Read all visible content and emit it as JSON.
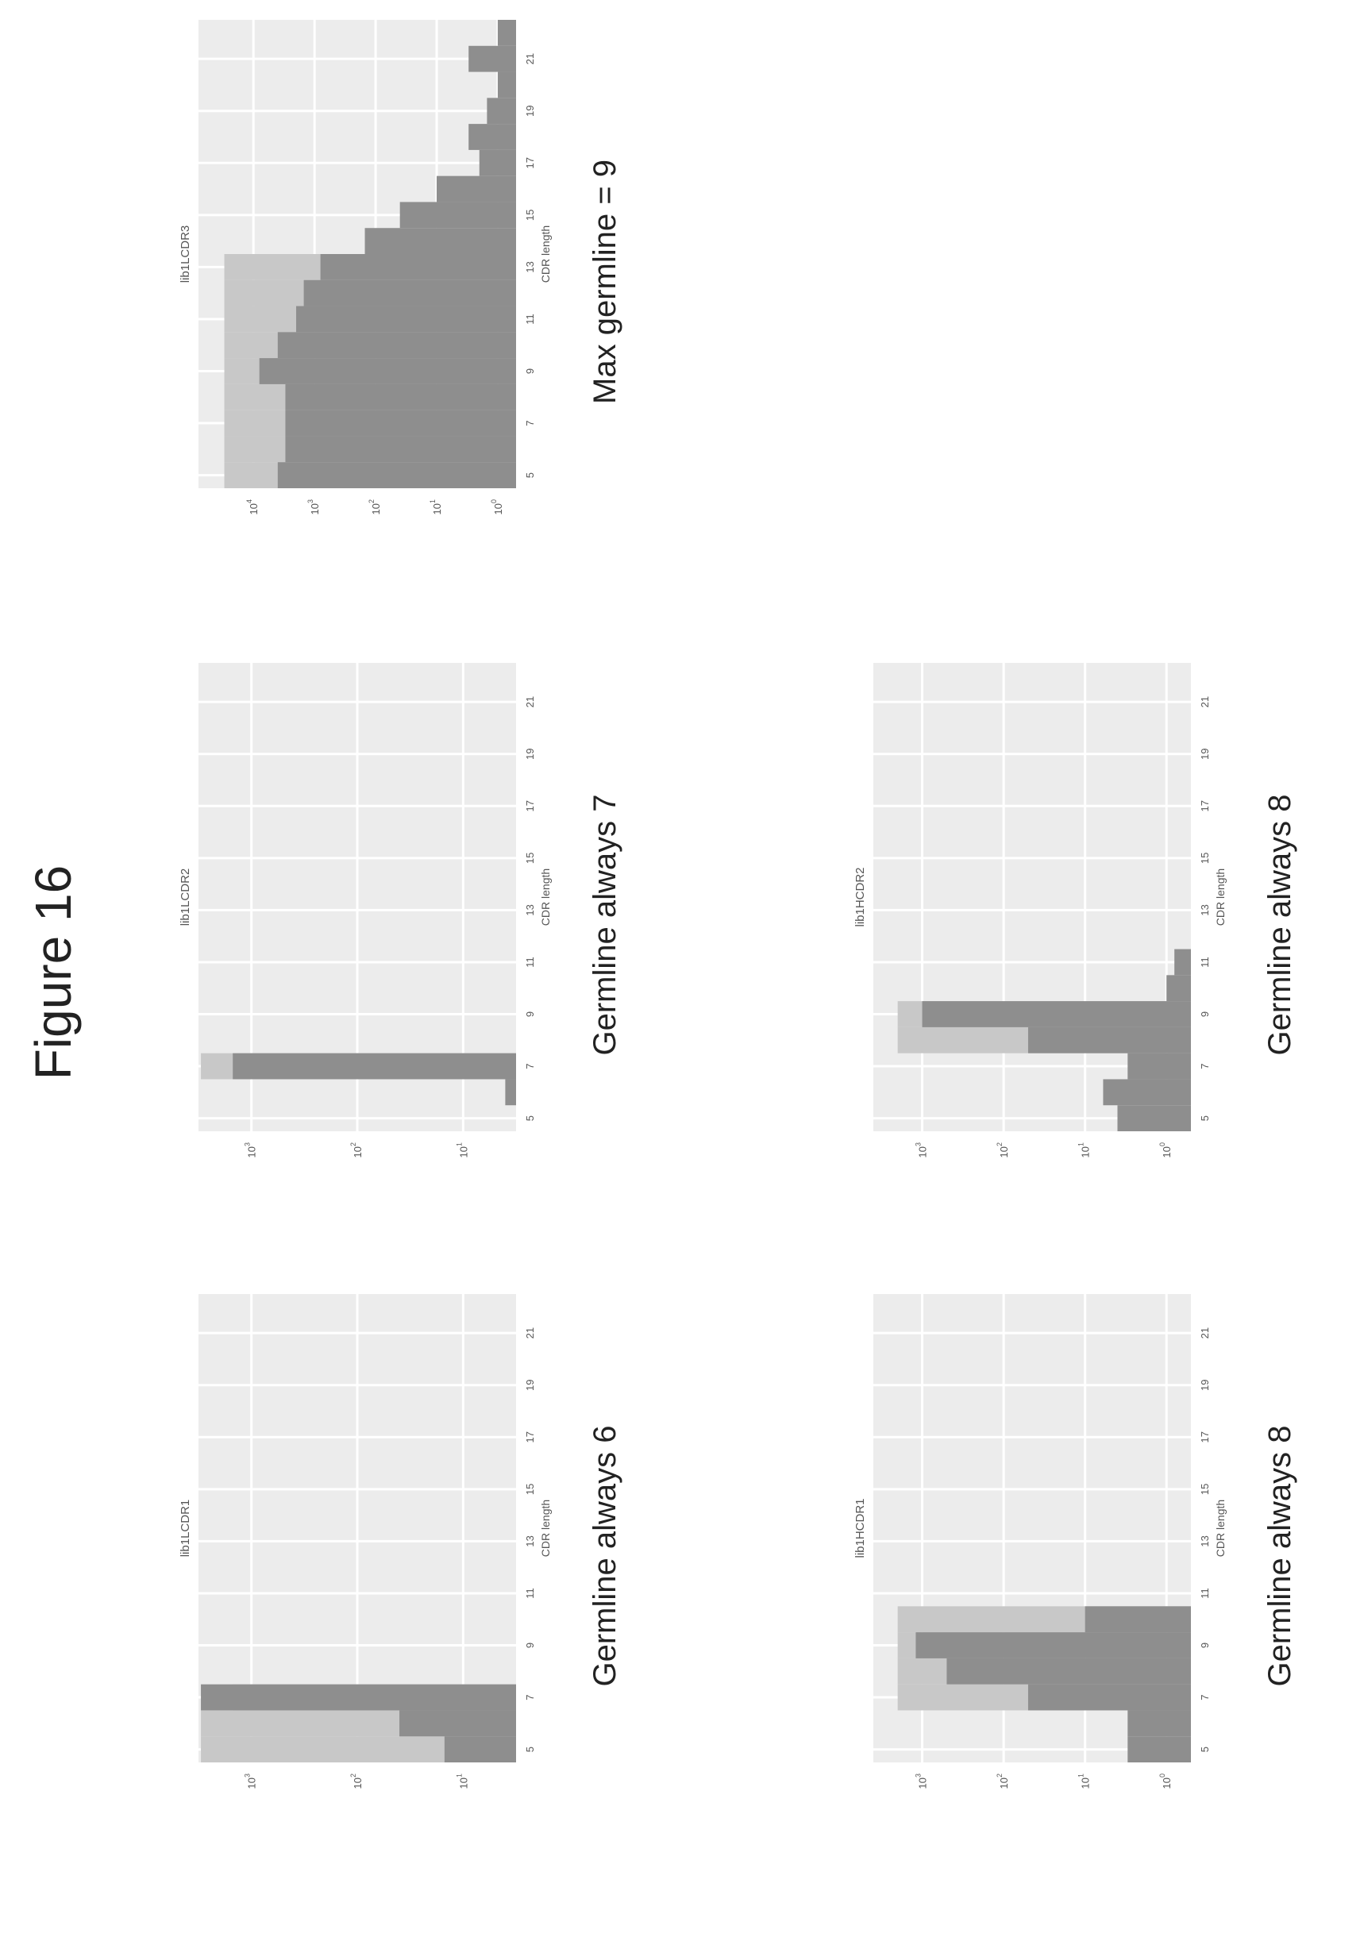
{
  "figure_title": "Figure 16",
  "charts": [
    {
      "caption": "Germline always 6"
    },
    {
      "caption": "Germline always 7"
    },
    {
      "caption": "Max germline = 9"
    },
    {
      "caption": "Germline always 8"
    },
    {
      "caption": "Germline always 8"
    }
  ],
  "colors": {
    "plot_bg": "#ececec",
    "grid": "#ffffff",
    "light_bar": "#c8c8c8",
    "dark_bar": "#8e8e8e",
    "axis_text": "#555555"
  },
  "chart_data": [
    {
      "type": "bar",
      "title": "lib1LCDR1",
      "xlabel": "CDR length",
      "ylabel": "",
      "y_scale": "log",
      "xticks": [
        5,
        7,
        9,
        11,
        13,
        15,
        17,
        19,
        21
      ],
      "yticks": [
        "10^1",
        "10^2",
        "10^3"
      ],
      "ytick_exponents": [
        1,
        2,
        3
      ],
      "xlim": [
        4.5,
        22.5
      ],
      "ylim_exp": [
        0.5,
        3.5
      ],
      "series": [
        {
          "x": [
            5,
            6,
            7
          ],
          "values": [
            3000,
            3000,
            1500
          ]
        },
        {
          "x": [
            5,
            6,
            7,
            8
          ],
          "values": [
            15,
            40,
            3000,
            3
          ]
        }
      ]
    },
    {
      "type": "bar",
      "title": "lib1LCDR2",
      "xlabel": "CDR length",
      "ylabel": "",
      "y_scale": "log",
      "xticks": [
        5,
        7,
        9,
        11,
        13,
        15,
        17,
        19,
        21
      ],
      "yticks": [
        "10^1",
        "10^2",
        "10^3"
      ],
      "ytick_exponents": [
        1,
        2,
        3
      ],
      "xlim": [
        4.5,
        22.5
      ],
      "ylim_exp": [
        0.5,
        3.5
      ],
      "series": [
        {
          "x": [
            7
          ],
          "values": [
            3000
          ]
        },
        {
          "x": [
            6,
            7
          ],
          "values": [
            4,
            1500
          ]
        }
      ]
    },
    {
      "type": "bar",
      "title": "lib1LCDR3",
      "xlabel": "CDR length",
      "ylabel": "",
      "y_scale": "log",
      "xticks": [
        5,
        7,
        9,
        11,
        13,
        15,
        17,
        19,
        21
      ],
      "yticks": [
        "10^0",
        "10^1",
        "10^2",
        "10^3",
        "10^4"
      ],
      "ytick_exponents": [
        0,
        1,
        2,
        3,
        4
      ],
      "xlim": [
        4.5,
        22.5
      ],
      "ylim_exp": [
        -0.3,
        4.9
      ],
      "series": [
        {
          "x": [
            5,
            6,
            7,
            8,
            9,
            10,
            11,
            12,
            13
          ],
          "values": [
            30000,
            30000,
            30000,
            30000,
            30000,
            30000,
            30000,
            30000,
            30000
          ]
        },
        {
          "x": [
            5,
            6,
            7,
            8,
            9,
            10,
            11,
            12,
            13,
            14,
            15,
            16,
            17,
            18,
            19,
            20,
            21,
            22
          ],
          "values": [
            4000,
            3000,
            3000,
            3000,
            8000,
            4000,
            2000,
            1500,
            800,
            150,
            40,
            10,
            2,
            3,
            1.5,
            1,
            3,
            1
          ]
        }
      ]
    },
    {
      "type": "bar",
      "title": "lib1HCDR1",
      "xlabel": "CDR length",
      "ylabel": "",
      "y_scale": "log",
      "xticks": [
        5,
        7,
        9,
        11,
        13,
        15,
        17,
        19,
        21
      ],
      "yticks": [
        "10^0",
        "10^1",
        "10^2",
        "10^3"
      ],
      "ytick_exponents": [
        0,
        1,
        2,
        3
      ],
      "xlim": [
        4.5,
        22.5
      ],
      "ylim_exp": [
        -0.3,
        3.6
      ],
      "series": [
        {
          "x": [
            7,
            8,
            9,
            10
          ],
          "values": [
            2000,
            2000,
            2000,
            2000
          ]
        },
        {
          "x": [
            5,
            6,
            7,
            8,
            9,
            10,
            13
          ],
          "values": [
            3,
            3,
            50,
            500,
            1200,
            10,
            0.5
          ]
        }
      ]
    },
    {
      "type": "bar",
      "title": "lib1HCDR2",
      "xlabel": "CDR length",
      "ylabel": "",
      "y_scale": "log",
      "xticks": [
        5,
        7,
        9,
        11,
        13,
        15,
        17,
        19,
        21
      ],
      "yticks": [
        "10^0",
        "10^1",
        "10^2",
        "10^3"
      ],
      "ytick_exponents": [
        0,
        1,
        2,
        3
      ],
      "xlim": [
        4.5,
        22.5
      ],
      "ylim_exp": [
        -0.3,
        3.6
      ],
      "series": [
        {
          "x": [
            8,
            9
          ],
          "values": [
            2000,
            2000
          ]
        },
        {
          "x": [
            5,
            6,
            7,
            8,
            9,
            10,
            11
          ],
          "values": [
            4,
            6,
            3,
            50,
            1000,
            1,
            0.8
          ]
        }
      ]
    }
  ]
}
